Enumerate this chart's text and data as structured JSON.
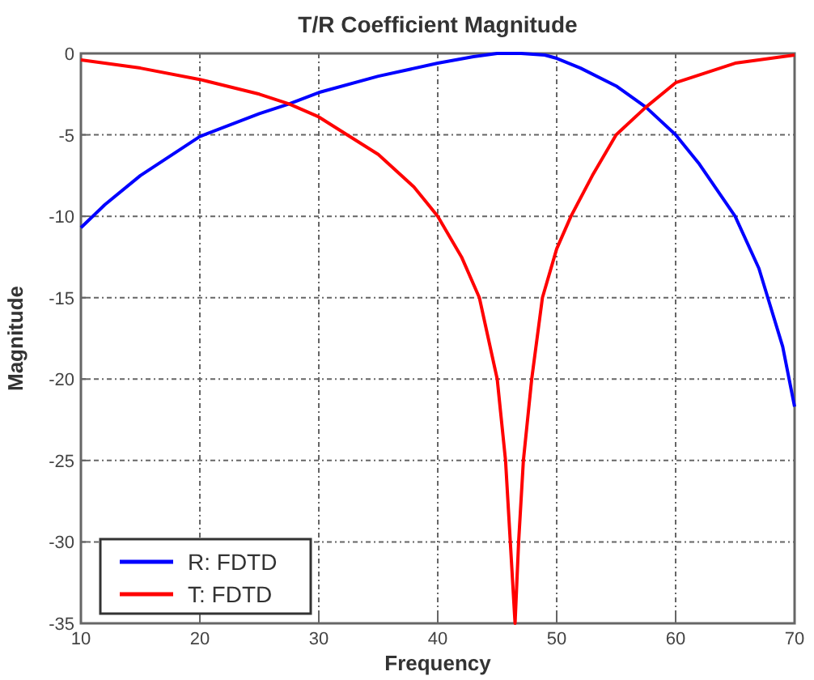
{
  "chart_data": {
    "type": "line",
    "title": "T/R Coefficient Magnitude",
    "xlabel": "Frequency",
    "ylabel": "Magnitude",
    "xlim": [
      10,
      70
    ],
    "ylim": [
      -35,
      0
    ],
    "xticks": [
      10,
      20,
      30,
      40,
      50,
      60,
      70
    ],
    "yticks": [
      -35,
      -30,
      -25,
      -20,
      -15,
      -10,
      -5,
      0
    ],
    "grid": true,
    "legend": "bottom left",
    "line_style": "solid",
    "marker": "none",
    "series": [
      {
        "name": "R: FDTD",
        "color": "#0000ff",
        "x": [
          10,
          12,
          15,
          20,
          25,
          27.5,
          30,
          35,
          40,
          43,
          45,
          47,
          49,
          50,
          52,
          55,
          57.5,
          60,
          62,
          65,
          67,
          69,
          70
        ],
        "values": [
          -10.7,
          -9.3,
          -7.5,
          -5.1,
          -3.7,
          -3.1,
          -2.4,
          -1.4,
          -0.6,
          -0.2,
          0,
          0,
          -0.1,
          -0.3,
          -0.9,
          -2,
          -3.3,
          -5,
          -6.8,
          -10,
          -13.2,
          -18,
          -21.7
        ]
      },
      {
        "name": "T: FDTD",
        "color": "#ff0000",
        "x": [
          10,
          15,
          20,
          25,
          27.5,
          30,
          35,
          38,
          40,
          42,
          43.5,
          45,
          45.7,
          46.1,
          46.5,
          46.8,
          47.2,
          47.9,
          48.8,
          50,
          51.2,
          53,
          55,
          57.5,
          60,
          65,
          70
        ],
        "values": [
          -0.4,
          -0.9,
          -1.6,
          -2.5,
          -3.1,
          -3.9,
          -6.2,
          -8.2,
          -10,
          -12.5,
          -15,
          -20,
          -25,
          -30,
          -35,
          -30,
          -25,
          -20,
          -15,
          -12,
          -10,
          -7.5,
          -5,
          -3.3,
          -1.8,
          -0.6,
          -0.1
        ]
      }
    ]
  }
}
